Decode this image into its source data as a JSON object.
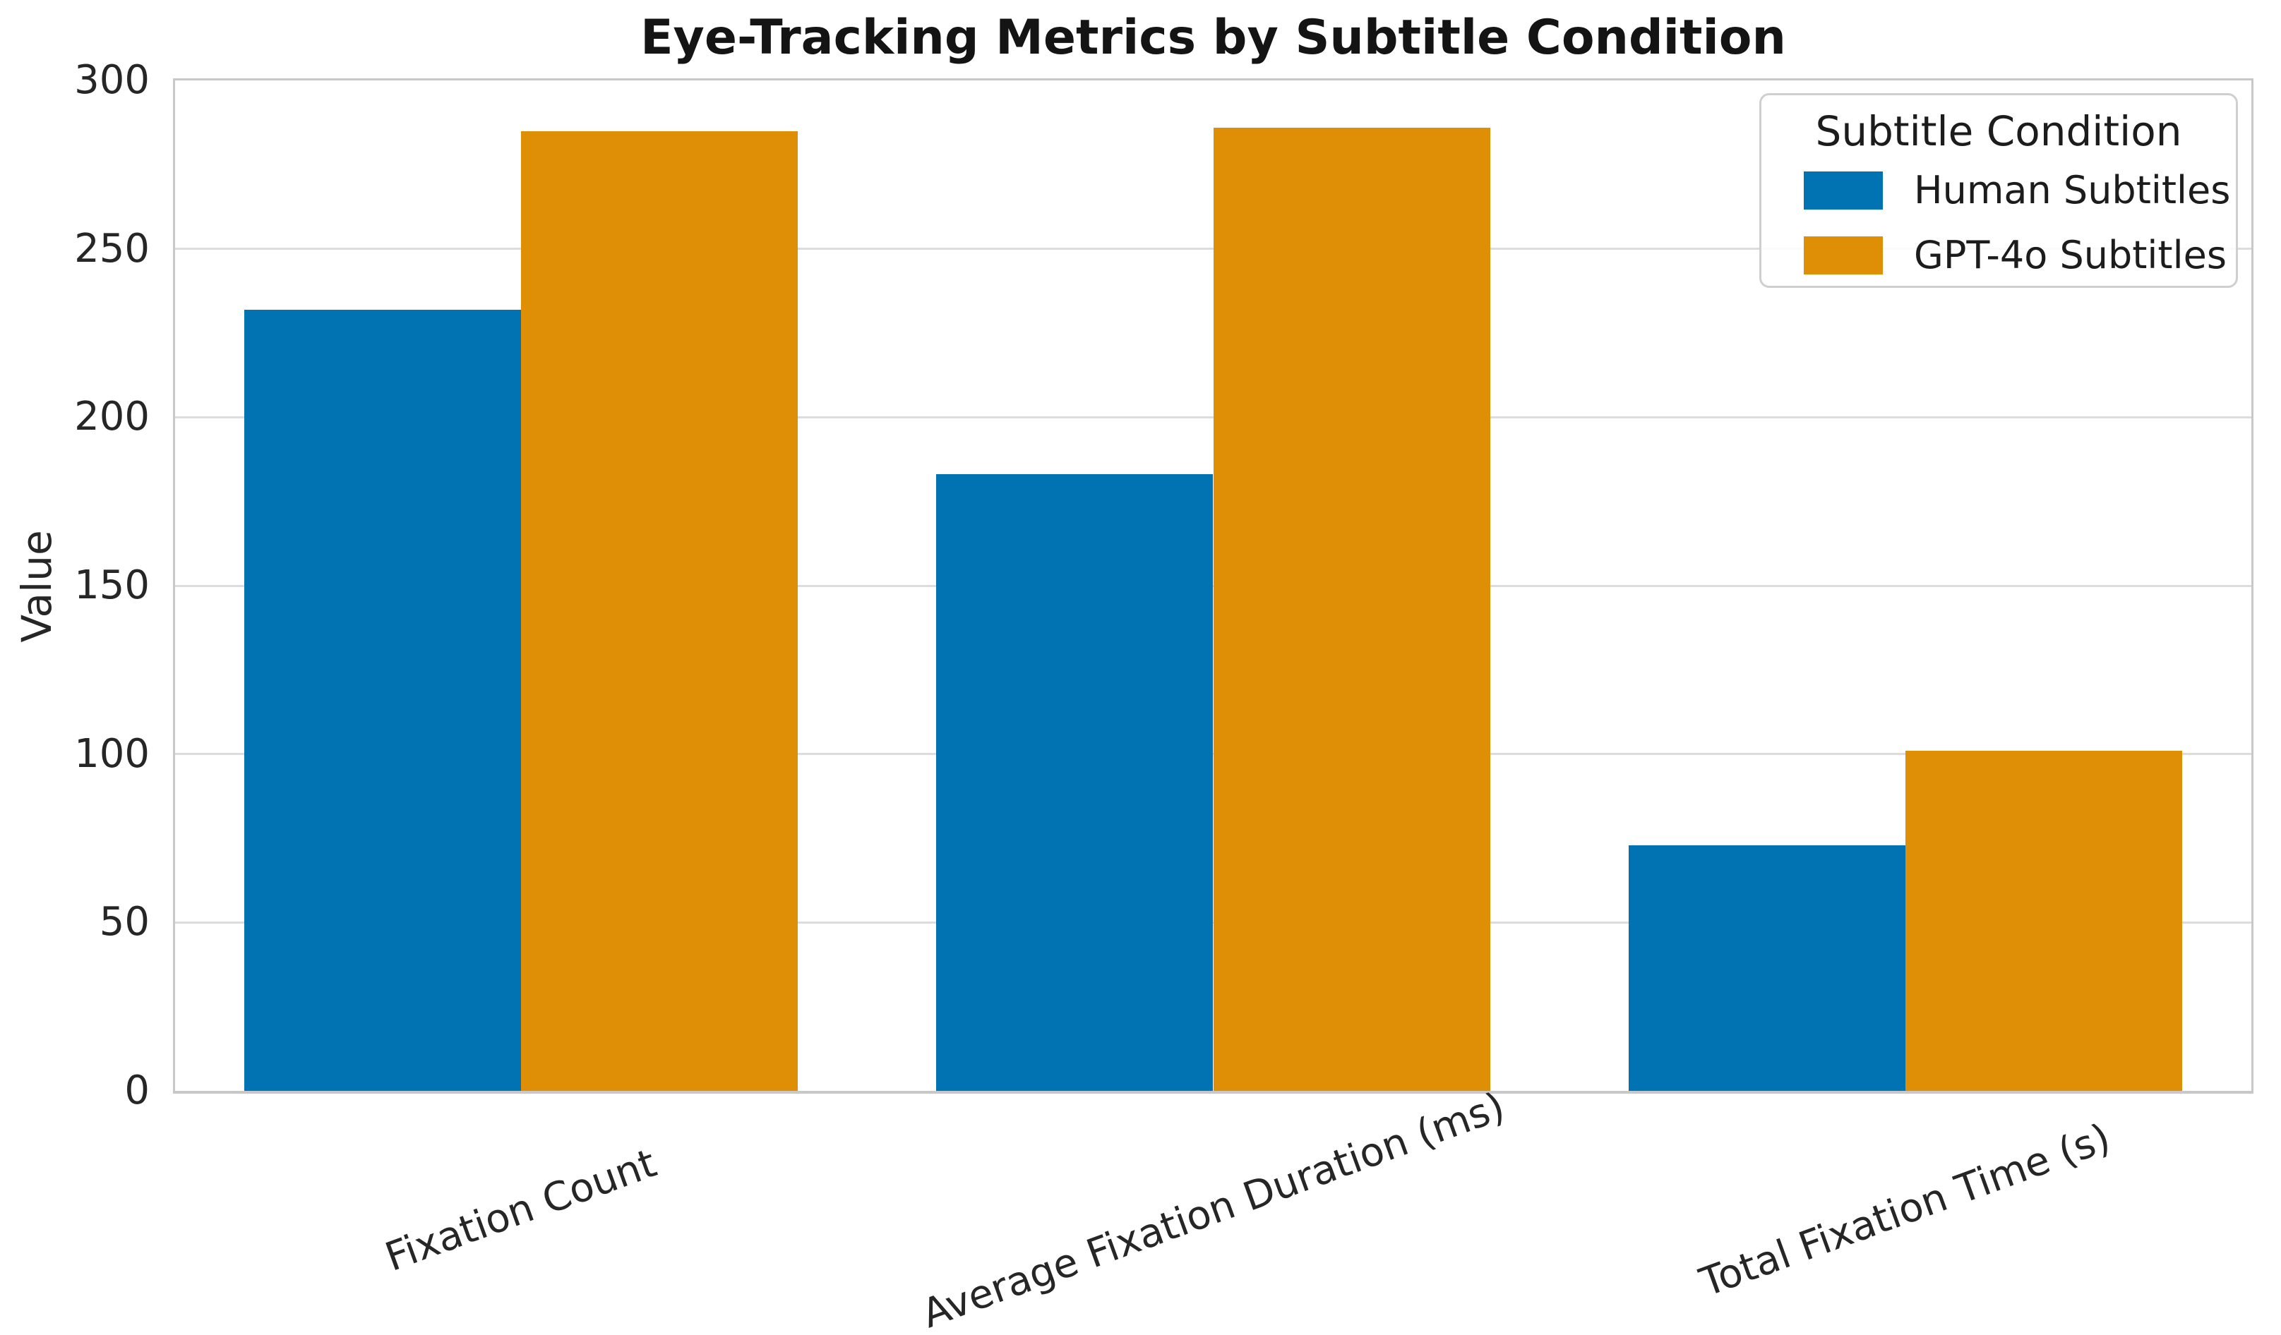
{
  "chart_data": {
    "type": "bar",
    "title": "Eye-Tracking Metrics by Subtitle Condition",
    "xlabel": "",
    "ylabel": "Value",
    "ylim": [
      0,
      300
    ],
    "yticks": [
      0,
      50,
      100,
      150,
      200,
      250,
      300
    ],
    "grid": "horizontal",
    "x_tick_rotation_deg": 20,
    "bar_group_width_fraction": 0.8,
    "categories": [
      "Fixation Count",
      "Average Fixation Duration (ms)",
      "Total Fixation Time (s)"
    ],
    "series": [
      {
        "name": "Human Subtitles",
        "color": "#0173b2",
        "values": [
          232,
          183,
          73
        ]
      },
      {
        "name": "GPT-4o Subtitles",
        "color": "#de8f05",
        "values": [
          285,
          286,
          101
        ]
      }
    ],
    "legend": {
      "title": "Subtitle Condition",
      "position": "upper right"
    }
  },
  "colors": {
    "background": "#ffffff",
    "grid_color": "#dcdcdc",
    "spine_color": "#c8c8c8",
    "tick_text_color": "#262626",
    "title_color": "#141414",
    "series_human": "#0173b2",
    "series_gpt4o": "#de8f05"
  }
}
